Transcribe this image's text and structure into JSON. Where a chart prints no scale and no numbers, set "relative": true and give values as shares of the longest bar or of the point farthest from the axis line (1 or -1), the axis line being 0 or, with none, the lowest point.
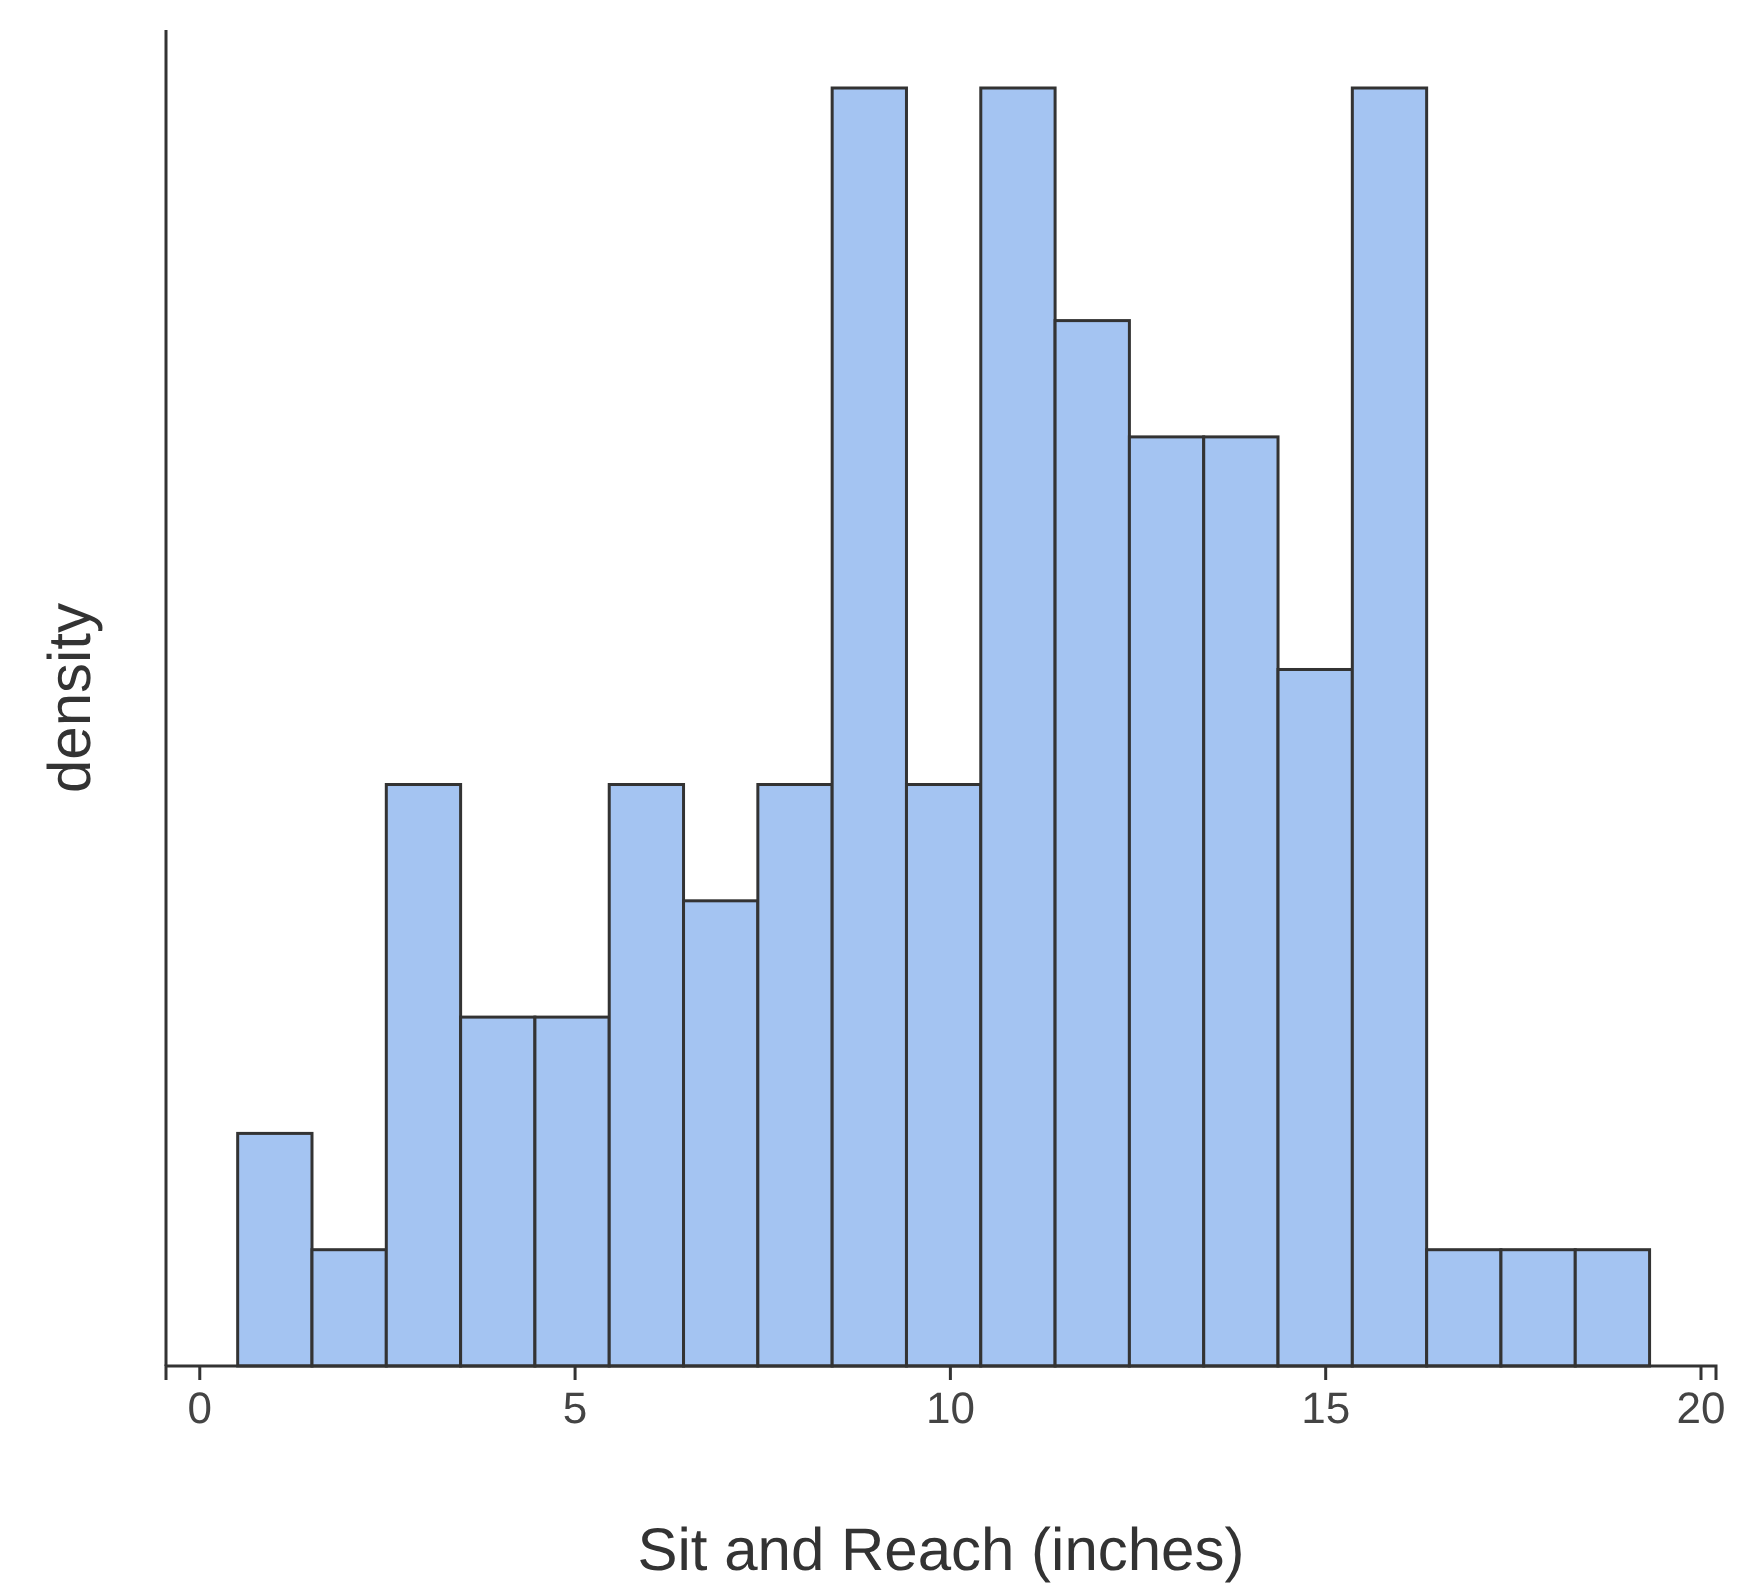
{
  "chart_data": {
    "type": "bar",
    "xlabel": "Sit and Reach (inches)",
    "ylabel": "density",
    "relative": true,
    "x": [
      1,
      1.99,
      2.98,
      3.97,
      4.96,
      5.95,
      6.94,
      7.93,
      8.92,
      9.91,
      10.9,
      11.89,
      12.88,
      13.87,
      14.86,
      15.85,
      16.84,
      17.83,
      18.82
    ],
    "values": [
      0.182,
      0.091,
      0.455,
      0.273,
      0.273,
      0.455,
      0.364,
      0.455,
      1,
      0.455,
      1,
      0.818,
      0.727,
      0.727,
      0.545,
      1,
      0.091,
      0.091,
      0.091
    ],
    "color": "#a4c4f2",
    "xlim": [
      -0.45,
      20.2
    ],
    "xticks": [
      0,
      5,
      10,
      15,
      20
    ]
  }
}
